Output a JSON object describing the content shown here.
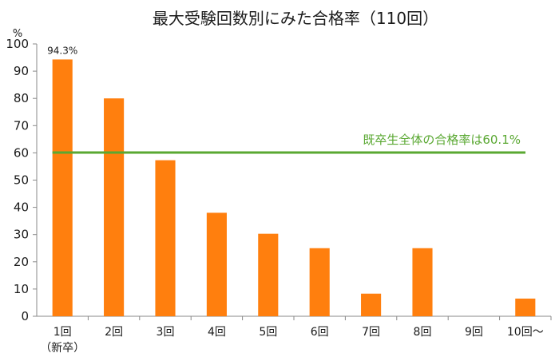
{
  "chart_data": {
    "type": "bar",
    "title": "最大受験回数別にみた合格率（110回）",
    "ylabel": "%",
    "ylim": [
      0,
      100
    ],
    "yticks": [
      0,
      10,
      20,
      30,
      40,
      50,
      60,
      70,
      80,
      90,
      100
    ],
    "categories": [
      "1回",
      "2回",
      "3回",
      "4回",
      "5回",
      "6回",
      "7回",
      "8回",
      "9回",
      "10回～"
    ],
    "category_sublabels": [
      "（新卒）",
      "",
      "",
      "",
      "",
      "",
      "",
      "",
      "",
      ""
    ],
    "values": [
      94.3,
      80,
      57.3,
      38,
      30.3,
      25,
      8.3,
      25,
      0,
      6.5
    ],
    "data_labels": [
      "94.3%",
      "",
      "",
      "",
      "",
      "",
      "",
      "",
      "",
      ""
    ],
    "bar_color": "#ff7f0e",
    "reference_line": {
      "value": 60.1,
      "label": "既卒生全体の合格率は60.1%",
      "color": "#5aa832"
    },
    "grid": false,
    "legend": "none"
  }
}
